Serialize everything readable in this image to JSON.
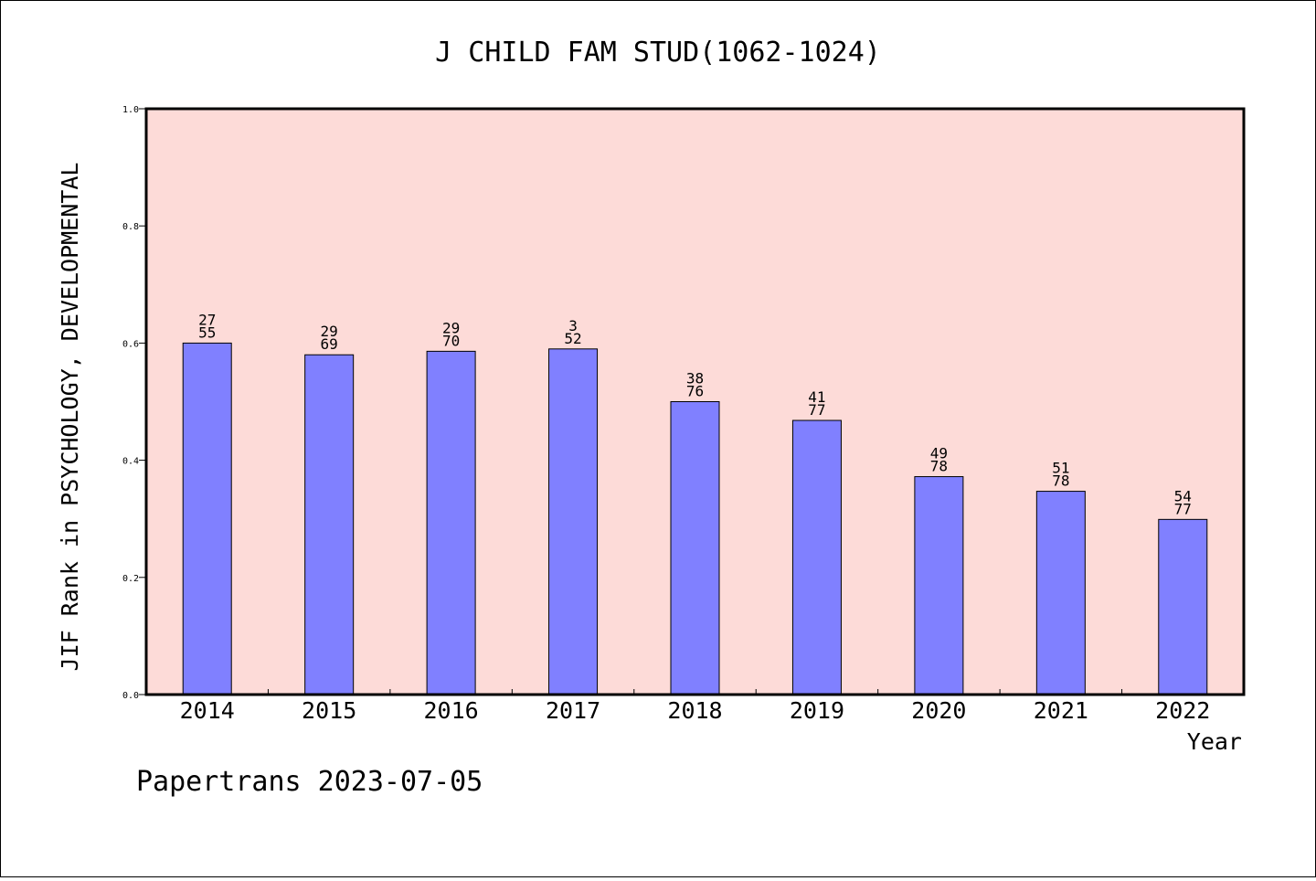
{
  "chart_data": {
    "type": "bar",
    "title": "J CHILD FAM STUD(1062-1024)",
    "xlabel": "Year",
    "ylabel": "JIF Rank in PSYCHOLOGY, DEVELOPMENTAL",
    "ylim": [
      0.0,
      1.0
    ],
    "yticks": [
      "0.0",
      "0.2",
      "0.4",
      "0.6",
      "0.8",
      "1.0"
    ],
    "grid": false,
    "categories": [
      "2014",
      "2015",
      "2016",
      "2017",
      "2018",
      "2019",
      "2020",
      "2021",
      "2022"
    ],
    "values": [
      0.6,
      0.58,
      0.586,
      0.59,
      0.5,
      0.468,
      0.372,
      0.347,
      0.299
    ],
    "labels_top": [
      "27",
      "29",
      "29",
      "3",
      "38",
      "41",
      "49",
      "51",
      "54"
    ],
    "labels_bottom": [
      "55",
      "69",
      "70",
      "52",
      "76",
      "77",
      "78",
      "78",
      "77"
    ],
    "colors": {
      "plot_bg": "#fddbd8",
      "bar": "#8080ff",
      "bar_edge": "#000000"
    }
  },
  "footer": "Papertrans 2023-07-05"
}
